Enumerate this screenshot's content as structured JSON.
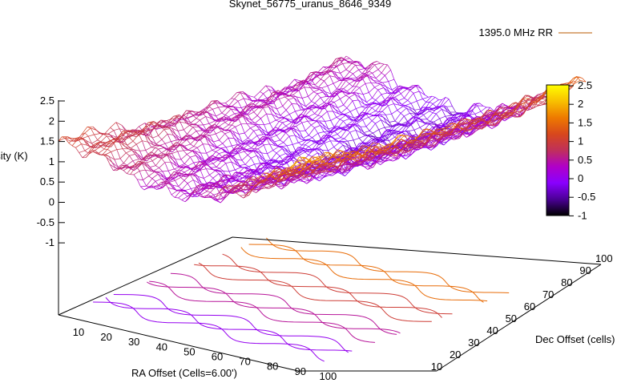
{
  "chart_data": {
    "type": "surface3d",
    "title": "Skynet_56775_uranus_8646_9349",
    "zlabel": "Intensity (K)",
    "xlabel": "RA Offset (Cells=6.00')",
    "ylabel": "Dec Offset (cells)",
    "legend": {
      "label": "1395.0 MHz RR",
      "position": "top-right"
    },
    "zlim": [
      -1,
      2.5
    ],
    "z_ticks": [
      "2.5",
      "2",
      "1.5",
      "1",
      "0.5",
      "0",
      "-0.5",
      "-1"
    ],
    "x_ticks": [
      "10",
      "20",
      "30",
      "40",
      "50",
      "60",
      "70",
      "80",
      "90",
      "100"
    ],
    "y_ticks": [
      "10",
      "20",
      "30",
      "40",
      "50",
      "60",
      "70",
      "80",
      "90",
      "100"
    ],
    "colorbar": {
      "range": [
        -1,
        2.5
      ],
      "ticks": [
        "2.5",
        "2",
        "1.5",
        "1",
        "0.5",
        "0",
        "-0.5",
        "-1"
      ],
      "colors": [
        "#000000",
        "#4b0096",
        "#8a00ff",
        "#b000c8",
        "#c0305a",
        "#d8481c",
        "#ee7a00",
        "#f8c000",
        "#ffff00"
      ]
    },
    "surface_profile": {
      "ra_levels": [
        0.4,
        0.5,
        0.0,
        -0.3,
        -0.6,
        -0.5,
        -0.2,
        0.4,
        1.2,
        1.9
      ],
      "dec_trend": [
        1.3,
        1.2,
        1.0,
        0.8,
        0.6,
        0.5,
        0.45,
        0.4,
        0.45,
        0.5
      ]
    },
    "grid": false
  }
}
